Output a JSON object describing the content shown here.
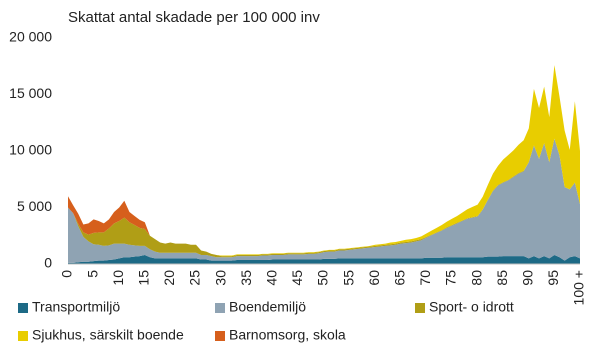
{
  "chart_data": {
    "type": "stacked_area",
    "title": "Skattat antal skadade per 100 000 inv",
    "categories": [
      "0",
      null,
      null,
      null,
      null,
      "5",
      null,
      null,
      null,
      null,
      "10",
      null,
      null,
      null,
      null,
      "15",
      null,
      null,
      null,
      null,
      "20",
      null,
      null,
      null,
      null,
      "25",
      null,
      null,
      null,
      null,
      "30",
      null,
      null,
      null,
      null,
      "35",
      null,
      null,
      null,
      null,
      "40",
      null,
      null,
      null,
      null,
      "45",
      null,
      null,
      null,
      null,
      "50",
      null,
      null,
      null,
      null,
      "55",
      null,
      null,
      null,
      null,
      "60",
      null,
      null,
      null,
      null,
      "65",
      null,
      null,
      null,
      null,
      "70",
      null,
      null,
      null,
      null,
      "75",
      null,
      null,
      null,
      null,
      "80",
      null,
      null,
      null,
      null,
      "85",
      null,
      null,
      null,
      null,
      "90",
      null,
      null,
      null,
      null,
      "95",
      null,
      null,
      null,
      null,
      "100 +"
    ],
    "ylim": [
      0,
      20000
    ],
    "yticks": [
      {
        "value": 0,
        "label": "0"
      },
      {
        "value": 5000,
        "label": "5 000"
      },
      {
        "value": 10000,
        "label": "10 000"
      },
      {
        "value": 15000,
        "label": "15 000"
      },
      {
        "value": 20000,
        "label": "20 000"
      }
    ],
    "series": [
      {
        "name": "Transportmiljö",
        "color": "#1d6a86",
        "values": [
          100,
          100,
          150,
          200,
          200,
          250,
          300,
          300,
          350,
          400,
          500,
          600,
          600,
          650,
          700,
          800,
          600,
          500,
          500,
          500,
          500,
          500,
          500,
          500,
          500,
          500,
          400,
          400,
          300,
          300,
          300,
          300,
          300,
          350,
          350,
          350,
          350,
          350,
          350,
          350,
          400,
          400,
          400,
          400,
          400,
          400,
          400,
          400,
          400,
          400,
          450,
          450,
          450,
          500,
          500,
          500,
          500,
          500,
          500,
          500,
          500,
          500,
          500,
          500,
          500,
          500,
          500,
          500,
          500,
          500,
          550,
          550,
          550,
          550,
          600,
          600,
          600,
          600,
          600,
          600,
          600,
          600,
          650,
          650,
          650,
          700,
          700,
          700,
          700,
          700,
          500,
          700,
          500,
          700,
          500,
          800,
          600,
          300,
          600,
          700,
          500
        ]
      },
      {
        "name": "Boendemiljö",
        "color": "#8fa3b3",
        "values": [
          4900,
          4400,
          3200,
          2200,
          1800,
          1500,
          1400,
          1300,
          1300,
          1400,
          1300,
          1200,
          1100,
          1000,
          900,
          800,
          700,
          600,
          500,
          500,
          500,
          500,
          500,
          500,
          500,
          500,
          400,
          400,
          400,
          300,
          300,
          300,
          300,
          350,
          350,
          350,
          350,
          350,
          400,
          400,
          400,
          400,
          400,
          450,
          450,
          450,
          450,
          500,
          500,
          550,
          600,
          650,
          650,
          700,
          700,
          750,
          800,
          850,
          900,
          950,
          1000,
          1050,
          1100,
          1150,
          1200,
          1300,
          1350,
          1400,
          1500,
          1600,
          1800,
          2000,
          2200,
          2400,
          2600,
          2800,
          3000,
          3200,
          3400,
          3500,
          3600,
          4200,
          5000,
          5800,
          6300,
          6500,
          6700,
          7000,
          7300,
          7500,
          8500,
          9800,
          8800,
          10000,
          8500,
          10300,
          9000,
          6500,
          6000,
          6500,
          4800
        ]
      },
      {
        "name": "Sport- o idrott",
        "color": "#b09e16",
        "values": [
          0,
          0,
          200,
          400,
          600,
          1000,
          1100,
          1200,
          1500,
          1800,
          2000,
          2300,
          2000,
          1800,
          1600,
          1500,
          1200,
          1100,
          900,
          800,
          900,
          800,
          800,
          800,
          700,
          700,
          400,
          300,
          200,
          200,
          100,
          100,
          100,
          100,
          100,
          100,
          100,
          100,
          100,
          100,
          100,
          100,
          100,
          100,
          100,
          100,
          100,
          100,
          100,
          100,
          100,
          100,
          100,
          100,
          100,
          100,
          100,
          100,
          100,
          100,
          100,
          100,
          100,
          100,
          100,
          100,
          100,
          100,
          100,
          100,
          50,
          50,
          50,
          50,
          50,
          50,
          50,
          50,
          50,
          50,
          50,
          50,
          50,
          50,
          50,
          50,
          50,
          50,
          50,
          50,
          0,
          0,
          0,
          0,
          0,
          0,
          0,
          0,
          0,
          0,
          0
        ]
      },
      {
        "name": "Sjukhus, särskilt boende",
        "color": "#e8cd00",
        "values": [
          0,
          0,
          0,
          0,
          0,
          0,
          0,
          0,
          0,
          0,
          0,
          0,
          0,
          0,
          0,
          0,
          0,
          0,
          0,
          0,
          0,
          0,
          0,
          0,
          0,
          0,
          0,
          0,
          0,
          0,
          50,
          50,
          50,
          50,
          50,
          50,
          50,
          50,
          50,
          50,
          50,
          50,
          50,
          50,
          50,
          50,
          50,
          50,
          50,
          50,
          50,
          50,
          50,
          50,
          50,
          50,
          50,
          50,
          50,
          50,
          100,
          100,
          100,
          150,
          150,
          150,
          200,
          200,
          200,
          250,
          300,
          350,
          400,
          450,
          500,
          550,
          600,
          700,
          800,
          900,
          1000,
          1100,
          1300,
          1500,
          1700,
          2000,
          2200,
          2300,
          2500,
          2700,
          3000,
          5000,
          4500,
          5000,
          4000,
          6500,
          5200,
          5000,
          3500,
          7200,
          4700
        ]
      },
      {
        "name": "Barnomsorg, skola",
        "color": "#d65f1c",
        "values": [
          1000,
          700,
          900,
          700,
          1000,
          1200,
          1000,
          800,
          800,
          1000,
          1200,
          1500,
          900,
          800,
          700,
          600,
          0,
          0,
          0,
          0,
          0,
          0,
          0,
          0,
          0,
          0,
          0,
          0,
          0,
          0,
          0,
          0,
          0,
          0,
          0,
          0,
          0,
          0,
          0,
          0,
          0,
          0,
          0,
          0,
          0,
          0,
          0,
          0,
          0,
          0,
          0,
          0,
          0,
          0,
          0,
          0,
          0,
          0,
          0,
          0,
          0,
          0,
          0,
          0,
          0,
          0,
          0,
          0,
          0,
          0,
          0,
          0,
          0,
          0,
          0,
          0,
          0,
          0,
          0,
          0,
          0,
          0,
          0,
          0,
          0,
          0,
          0,
          0,
          0,
          0,
          0,
          0,
          0,
          0,
          0,
          0,
          0,
          0,
          0,
          0,
          0
        ]
      }
    ]
  }
}
